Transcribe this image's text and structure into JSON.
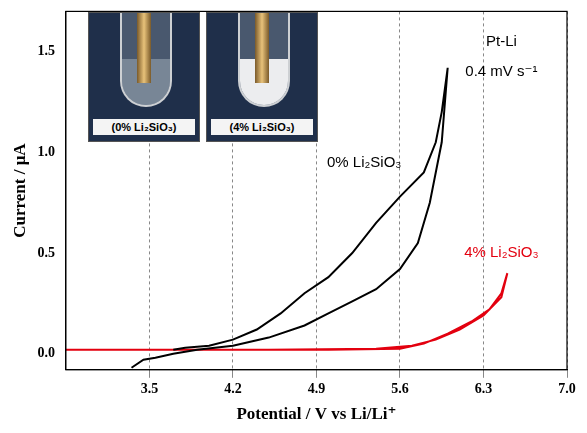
{
  "chart_data": {
    "type": "line",
    "xlabel": "Potential / V vs Li/Li⁺",
    "ylabel": "Current / μA",
    "xlim": [
      2.8,
      7.0
    ],
    "xticks": [
      3.5,
      4.2,
      4.9,
      5.6,
      6.3,
      {
        "value": 7,
        "label": "7.0"
      }
    ],
    "ylim": [
      -0.08,
      1.7
    ],
    "yticks": [
      {
        "value": 0,
        "label": "0.0"
      },
      0.5,
      {
        "value": 1,
        "label": "1.0"
      },
      1.5
    ],
    "grid": true,
    "series": [
      {
        "name": "0% Li₂SiO₃",
        "color": "#000000",
        "x": [
          3.35,
          3.45,
          3.55,
          3.7,
          3.9,
          4.2,
          4.5,
          4.8,
          5.0,
          5.2,
          5.4,
          5.6,
          5.75,
          5.85,
          5.95,
          6.0,
          5.95,
          5.9,
          5.8,
          5.6,
          5.4,
          5.2,
          5.0,
          4.8,
          4.6,
          4.4,
          4.2,
          4.0,
          3.8,
          3.7
        ],
        "values": [
          -0.07,
          -0.03,
          -0.02,
          0.0,
          0.02,
          0.04,
          0.08,
          0.14,
          0.2,
          0.26,
          0.32,
          0.42,
          0.55,
          0.75,
          1.05,
          1.42,
          1.2,
          1.05,
          0.9,
          0.78,
          0.65,
          0.5,
          0.38,
          0.3,
          0.2,
          0.12,
          0.07,
          0.04,
          0.03,
          0.02
        ]
      },
      {
        "name": "4% Li₂SiO₃",
        "color": "#e3000f",
        "x": [
          2.8,
          4.0,
          5.0,
          5.6,
          5.8,
          6.0,
          6.2,
          6.35,
          6.45,
          6.5,
          6.45,
          6.3,
          6.1,
          5.9,
          5.7,
          5.4,
          4.5,
          2.8
        ],
        "values": [
          0.02,
          0.02,
          0.02,
          0.025,
          0.05,
          0.1,
          0.16,
          0.22,
          0.3,
          0.4,
          0.28,
          0.19,
          0.12,
          0.07,
          0.04,
          0.025,
          0.02,
          0.02
        ]
      }
    ],
    "annotations": [
      {
        "text": "Pt-Li",
        "x": 6.45,
        "y": 1.55,
        "color": "#000000"
      },
      {
        "text": "0.4 mV s⁻¹",
        "x": 6.45,
        "y": 1.4,
        "color": "#000000"
      },
      {
        "text": "0% Li₂SiO₃",
        "x": 5.3,
        "y": 0.95,
        "color": "#000000"
      },
      {
        "text": "4% Li₂SiO₃",
        "x": 6.45,
        "y": 0.5,
        "color": "#e3000f"
      }
    ],
    "insets": [
      {
        "label": "(0% Li₂SiO₃)"
      },
      {
        "label": "(4% Li₂SiO₃)"
      }
    ]
  }
}
